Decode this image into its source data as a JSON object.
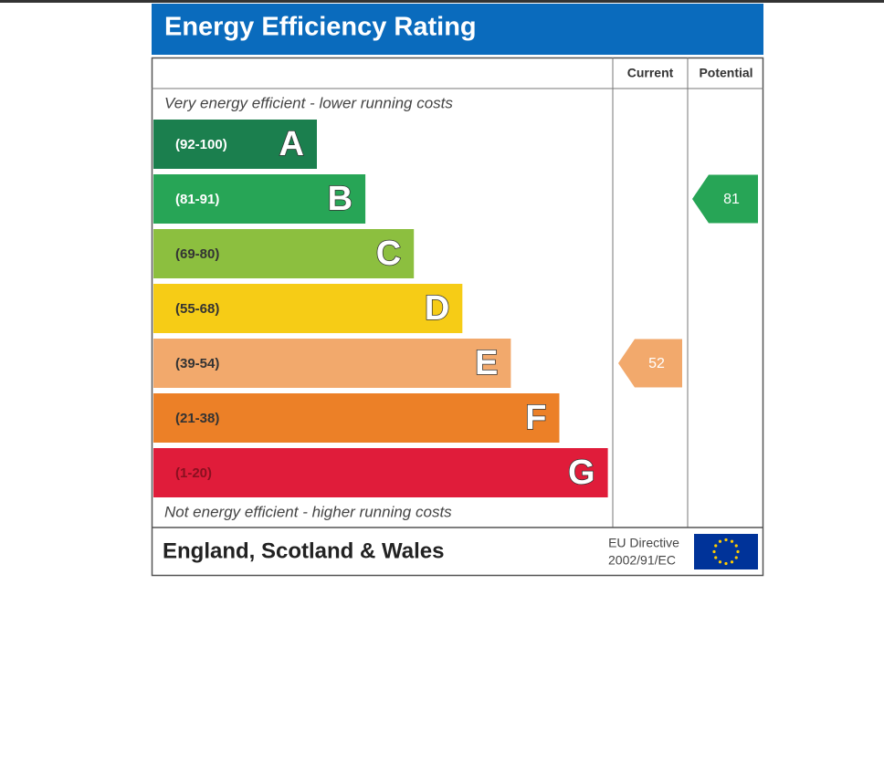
{
  "header": {
    "title": "Energy Efficiency Rating"
  },
  "columns": [
    "Current",
    "Potential"
  ],
  "top_note": "Very energy efficient - lower running costs",
  "bottom_note": "Not energy efficient - higher running costs",
  "bands": [
    {
      "range": "(92-100)",
      "letter": "A",
      "color": "#1b7f4e",
      "text_color": "#ffffff"
    },
    {
      "range": "(81-91)",
      "letter": "B",
      "color": "#27a556",
      "text_color": "#ffffff"
    },
    {
      "range": "(69-80)",
      "letter": "C",
      "color": "#8cbf3f",
      "text_color": "#333333"
    },
    {
      "range": "(55-68)",
      "letter": "D",
      "color": "#f6cc16",
      "text_color": "#333333"
    },
    {
      "range": "(39-54)",
      "letter": "E",
      "color": "#f2a96c",
      "text_color": "#333333"
    },
    {
      "range": "(21-38)",
      "letter": "F",
      "color": "#ec8027",
      "text_color": "#333333"
    },
    {
      "range": "(1-20)",
      "letter": "G",
      "color": "#e01c3a",
      "text_color": "#8a1020"
    }
  ],
  "ratings": [
    {
      "value": 52,
      "color": "#f2a96c"
    },
    {
      "value": 81,
      "color": "#27a556"
    }
  ],
  "footer": {
    "region": "England, Scotland & Wales",
    "directive": "EU Directive",
    "directive_code": "2002/91/EC"
  }
}
